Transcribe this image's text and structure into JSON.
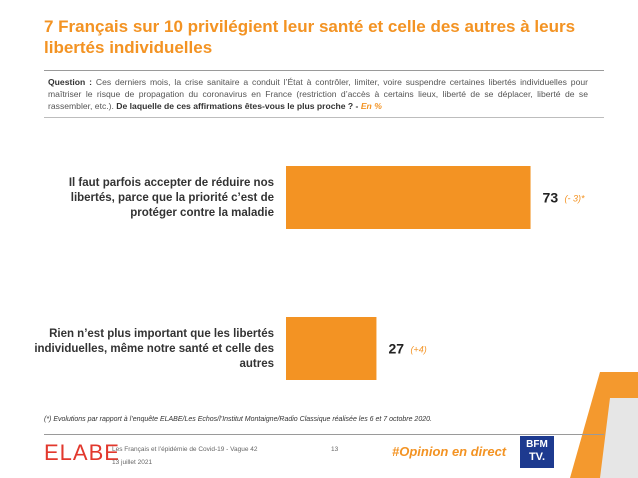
{
  "header": {
    "title": "7 Français sur 10 privilégient leur santé et celle des autres à leurs libertés individuelles"
  },
  "question": {
    "label": "Question :",
    "text": "Ces derniers mois, la crise sanitaire a conduit l’État à contrôler, limiter, voire suspendre certaines libertés individuelles pour maîtriser le risque de propagation du coronavirus en France (restriction d’accès à certains lieux, liberté de se déplacer, liberté de se rassembler, etc.).",
    "bold": "De laquelle de ces affirmations êtes-vous le plus proche ? -",
    "unit": "En %"
  },
  "chart_data": {
    "type": "bar",
    "orientation": "horizontal",
    "categories": [
      "Il faut parfois accepter de réduire nos libertés, parce que la priorité c’est de protéger contre la maladie",
      "Rien n’est plus important que les libertés individuelles, même notre santé et celle des autres"
    ],
    "values": [
      73,
      27
    ],
    "value_labels": [
      "73",
      "27"
    ],
    "changes": [
      "(- 3)*",
      "(+4)"
    ],
    "xlim": [
      0,
      100
    ],
    "grid": false,
    "bar_color": "#f39323"
  },
  "footnote": "(*) Evolutions par rapport à l’enquête ELABE/Les Echos/l’Institut Montaigne/Radio Classique réalisée les 6 et 7 octobre 2020.",
  "footer": {
    "brand": "ELABE",
    "study": "Les Français et l’épidémie de Covid-19 - Vague 42",
    "date": "13 juillet 2021",
    "page": "13",
    "hashtag": "#Opinion en direct",
    "partner_top": "BFM",
    "partner_bottom": "TV."
  },
  "colors": {
    "accent": "#f39323",
    "brand_red": "#e2382d",
    "partner_blue": "#1d3a8f"
  }
}
